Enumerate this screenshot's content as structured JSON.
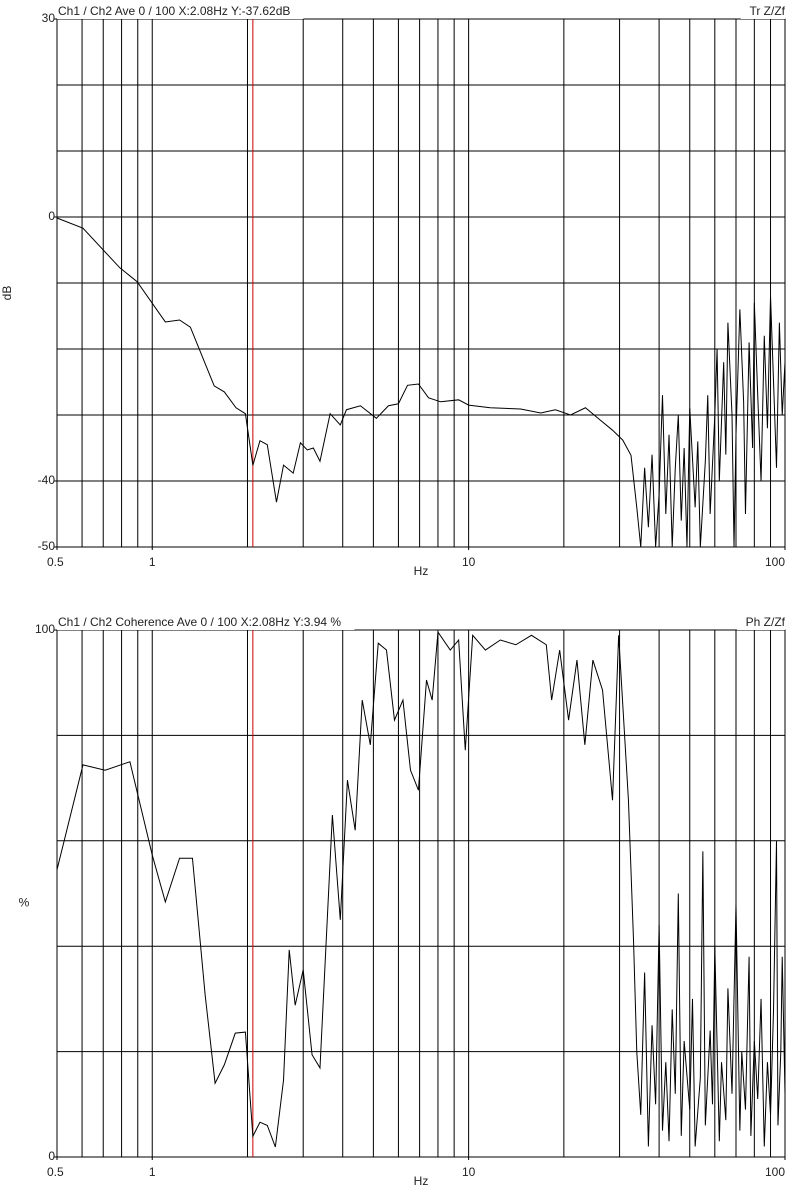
{
  "chart_data": [
    {
      "type": "line",
      "title": "Ch1 / Ch2  Ave 0 / 100  X:2.08Hz  Y:-37.62dB",
      "right_label": "Tr Z/Zf",
      "ylabel": "dB",
      "xlabel": "Hz",
      "log_x": true,
      "color": "#000000",
      "cursor_x": 2.08,
      "cursor_color": "#cc0000",
      "xlim": [
        0.5,
        100
      ],
      "xticks": [
        0.5,
        1,
        10,
        100
      ],
      "xgrid": [
        0.6,
        0.7,
        0.8,
        0.9,
        1,
        2,
        3,
        4,
        5,
        6,
        7,
        8,
        9,
        10,
        20,
        30,
        40,
        50,
        60,
        70,
        80,
        90
      ],
      "ylim": [
        -50,
        30
      ],
      "yticks": [
        30,
        0,
        -40,
        -50
      ],
      "ygrid": [
        20,
        10,
        0,
        -10,
        -20,
        -30,
        -40
      ],
      "x": [
        0.5,
        0.604,
        0.79,
        0.896,
        1.1,
        1.22,
        1.32,
        1.57,
        1.69,
        1.84,
        1.97,
        2.08,
        2.19,
        2.31,
        2.47,
        2.6,
        2.79,
        2.94,
        3.09,
        3.23,
        3.39,
        3.65,
        3.93,
        4.11,
        4.55,
        5.11,
        5.58,
        6.0,
        6.41,
        6.94,
        7.47,
        8.16,
        9.3,
        10,
        11.7,
        14.6,
        16.9,
        18.8,
        21,
        23.4,
        26.1,
        28.5,
        30.7,
        32.6,
        34,
        35,
        36,
        37,
        38,
        39,
        40,
        41,
        42,
        43,
        44,
        45,
        46,
        47,
        48,
        49,
        50,
        52,
        53,
        54,
        56,
        57,
        58,
        60,
        61,
        62,
        64,
        65,
        66,
        68,
        69,
        70,
        72,
        74,
        75,
        77,
        79,
        80,
        82,
        84,
        86,
        88,
        90,
        92,
        94,
        96,
        98,
        100
      ],
      "values": [
        -0.15,
        -1.7,
        -7.7,
        -9.8,
        -15.9,
        -15.6,
        -16.7,
        -25.6,
        -26.5,
        -28.9,
        -29.8,
        -37.62,
        -33.9,
        -34.5,
        -43.2,
        -37.6,
        -38.8,
        -34.2,
        -35.3,
        -35,
        -37,
        -29.8,
        -31.5,
        -29.2,
        -28.6,
        -30.5,
        -28.6,
        -28.3,
        -25.5,
        -25.3,
        -27.4,
        -28,
        -27.7,
        -28.5,
        -28.9,
        -29.1,
        -29.7,
        -29.2,
        -30,
        -28.9,
        -30.8,
        -32.3,
        -33.8,
        -36.1,
        -44,
        -50,
        -38,
        -47,
        -36,
        -50,
        -42,
        -27,
        -45,
        -33,
        -50,
        -38,
        -30,
        -46,
        -35,
        -50,
        -29,
        -44,
        -34,
        -50,
        -37,
        -27,
        -45,
        -30,
        -20,
        -40,
        -22,
        -36,
        -16,
        -30,
        -50,
        -33,
        -14,
        -28,
        -45,
        -19,
        -35,
        -13,
        -27,
        -40,
        -18,
        -32,
        -12,
        -25,
        -38,
        -16,
        -30,
        -22
      ]
    },
    {
      "type": "line",
      "title": "Ch1 / Ch2  Coherence Ave 0 / 100  X:2.08Hz  Y:3.94 %",
      "right_label": "Ph Z/Zf",
      "ylabel": "%",
      "xlabel": "Hz",
      "log_x": true,
      "color": "#000000",
      "cursor_x": 2.08,
      "cursor_color": "#cc0000",
      "xlim": [
        0.5,
        100
      ],
      "xticks": [
        0.5,
        1,
        10,
        100
      ],
      "xgrid": [
        0.6,
        0.7,
        0.8,
        0.9,
        1,
        2,
        3,
        4,
        5,
        6,
        7,
        8,
        9,
        10,
        20,
        30,
        40,
        50,
        60,
        70,
        80,
        90
      ],
      "ylim": [
        0,
        100
      ],
      "yticks": [
        100,
        0
      ],
      "ygrid": [
        80,
        60,
        40,
        20
      ],
      "x": [
        0.5,
        0.604,
        0.71,
        0.85,
        1.0,
        1.1,
        1.22,
        1.34,
        1.47,
        1.58,
        1.69,
        1.83,
        1.97,
        2.08,
        2.19,
        2.31,
        2.45,
        2.6,
        2.71,
        2.83,
        3.0,
        3.2,
        3.39,
        3.71,
        3.93,
        4.14,
        4.38,
        4.61,
        4.89,
        5.18,
        5.5,
        5.83,
        6.2,
        6.55,
        6.94,
        7.36,
        7.67,
        8.0,
        8.75,
        9.3,
        9.76,
        10.3,
        11.3,
        12.6,
        14.1,
        15.8,
        17.6,
        18.3,
        19.4,
        20.7,
        22,
        23.3,
        24.7,
        26.5,
        28.5,
        29.8,
        32,
        33.2,
        34,
        35,
        36,
        37,
        38,
        39,
        40,
        41,
        42,
        43,
        44,
        45,
        46,
        47,
        48,
        50,
        51,
        52,
        54,
        55,
        56,
        58,
        59,
        60,
        62,
        63,
        65,
        66,
        68,
        70,
        72,
        73,
        75,
        77,
        78,
        80,
        82,
        84,
        86,
        88,
        90,
        92,
        94,
        95,
        97,
        98,
        100
      ],
      "values": [
        54.5,
        74.4,
        73.4,
        75,
        57.3,
        48.4,
        56.7,
        56.7,
        30.7,
        14,
        17.5,
        23.5,
        23.7,
        3.94,
        6.6,
        6,
        1.9,
        14.6,
        39.3,
        28.8,
        35.5,
        19.4,
        16.9,
        64.9,
        45,
        71.5,
        62,
        86.7,
        78.2,
        97.5,
        96.2,
        82.9,
        86.7,
        73.4,
        69.6,
        90.5,
        86.7,
        99.6,
        96.2,
        98.1,
        77.2,
        99,
        96.2,
        98.1,
        97.2,
        99,
        97.2,
        86.7,
        96.2,
        82.9,
        94.3,
        78.2,
        94.3,
        88.6,
        67.7,
        99,
        67.7,
        41.2,
        20,
        8,
        35,
        2,
        25,
        10,
        44,
        5,
        18,
        3,
        28,
        12,
        50,
        4,
        22,
        9,
        30,
        2,
        15,
        58,
        6,
        24,
        10,
        40,
        3,
        18,
        7,
        32,
        12,
        48,
        5,
        20,
        9,
        38,
        4,
        22,
        11,
        30,
        2,
        18,
        8,
        28,
        60,
        6,
        20,
        38,
        12
      ]
    }
  ]
}
